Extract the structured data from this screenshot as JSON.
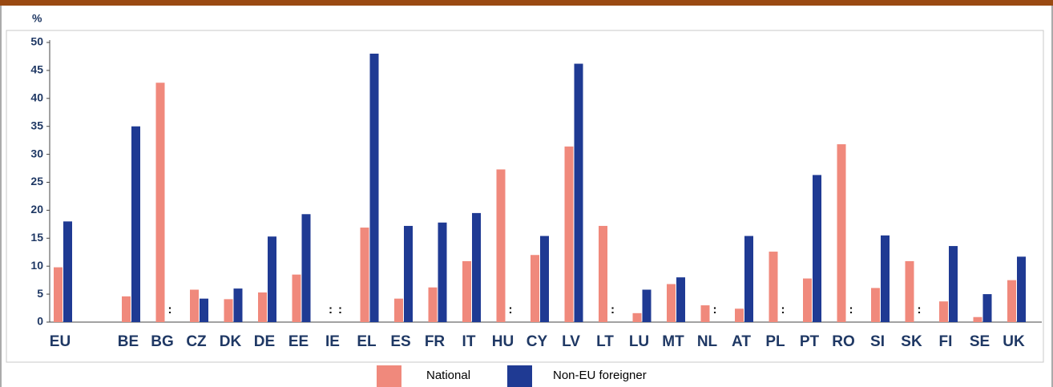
{
  "chart_data": {
    "type": "bar",
    "y_label": "%",
    "categories": [
      "EU",
      null,
      "BE",
      "BG",
      "CZ",
      "DK",
      "DE",
      "EE",
      "IE",
      "EL",
      "ES",
      "FR",
      "IT",
      "HU",
      "CY",
      "LV",
      "LT",
      "LU",
      "MT",
      "NL",
      "AT",
      "PL",
      "PT",
      "RO",
      "SI",
      "SK",
      "FI",
      "SE",
      "UK"
    ],
    "series": [
      {
        "name": "National",
        "color": "#f0897c",
        "values": [
          9.8,
          null,
          4.6,
          42.8,
          5.8,
          4.1,
          5.3,
          8.5,
          null,
          16.9,
          4.2,
          6.2,
          10.9,
          27.3,
          12,
          31.4,
          17.2,
          1.6,
          6.8,
          3,
          2.4,
          12.6,
          7.8,
          31.8,
          6.1,
          10.9,
          3.7,
          0.9,
          7.5
        ],
        "value_labels": [
          null,
          null,
          null,
          null,
          null,
          null,
          null,
          null,
          ":",
          null,
          null,
          null,
          null,
          null,
          null,
          null,
          null,
          null,
          null,
          null,
          null,
          null,
          null,
          null,
          null,
          null,
          null,
          null,
          null
        ]
      },
      {
        "name": "Non-EU foreigner",
        "color": "#1f3a93",
        "values": [
          18,
          null,
          35,
          null,
          4.2,
          6,
          15.3,
          19.3,
          null,
          48,
          17.2,
          17.8,
          19.5,
          null,
          15.4,
          46.2,
          null,
          5.8,
          8,
          null,
          15.4,
          null,
          26.3,
          null,
          15.5,
          null,
          13.6,
          5,
          11.7
        ],
        "value_labels": [
          null,
          null,
          null,
          ":",
          null,
          null,
          null,
          null,
          ":",
          null,
          null,
          null,
          null,
          ":",
          null,
          null,
          ":",
          null,
          null,
          ":",
          null,
          ":",
          null,
          ":",
          null,
          ":",
          null,
          null,
          null
        ]
      }
    ],
    "ylim": [
      0,
      50
    ],
    "yticks": [
      0,
      5,
      10,
      15,
      20,
      25,
      30,
      35,
      40,
      45,
      50
    ],
    "grid": false,
    "legend": "bottom"
  }
}
